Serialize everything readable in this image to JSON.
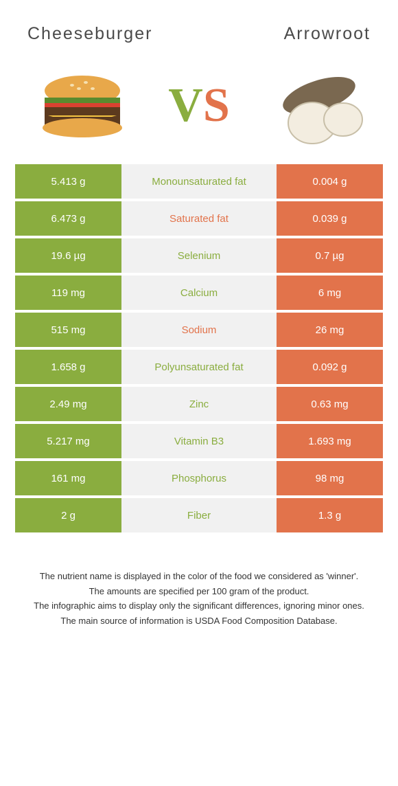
{
  "header": {
    "left_title": "Cheeseburger",
    "right_title": "Arrowroot"
  },
  "vs": {
    "v": "V",
    "s": "S"
  },
  "colors": {
    "left": "#8aad3f",
    "right": "#e2734b",
    "mid_bg": "#f1f1f1",
    "text": "#ffffff"
  },
  "rows": [
    {
      "left": "5.413 g",
      "label": "Monounsaturated fat",
      "right": "0.004 g",
      "winner": "left"
    },
    {
      "left": "6.473 g",
      "label": "Saturated fat",
      "right": "0.039 g",
      "winner": "right"
    },
    {
      "left": "19.6 µg",
      "label": "Selenium",
      "right": "0.7 µg",
      "winner": "left"
    },
    {
      "left": "119 mg",
      "label": "Calcium",
      "right": "6 mg",
      "winner": "left"
    },
    {
      "left": "515 mg",
      "label": "Sodium",
      "right": "26 mg",
      "winner": "right"
    },
    {
      "left": "1.658 g",
      "label": "Polyunsaturated fat",
      "right": "0.092 g",
      "winner": "left"
    },
    {
      "left": "2.49 mg",
      "label": "Zinc",
      "right": "0.63 mg",
      "winner": "left"
    },
    {
      "left": "5.217 mg",
      "label": "Vitamin B3",
      "right": "1.693 mg",
      "winner": "left"
    },
    {
      "left": "161 mg",
      "label": "Phosphorus",
      "right": "98 mg",
      "winner": "left"
    },
    {
      "left": "2 g",
      "label": "Fiber",
      "right": "1.3 g",
      "winner": "left"
    }
  ],
  "notes": [
    "The nutrient name is displayed in the color of the food we considered as 'winner'.",
    "The amounts are specified per 100 gram of the product.",
    "The infographic aims to display only the significant differences, ignoring minor ones.",
    "The main source of information is USDA Food Composition Database."
  ]
}
